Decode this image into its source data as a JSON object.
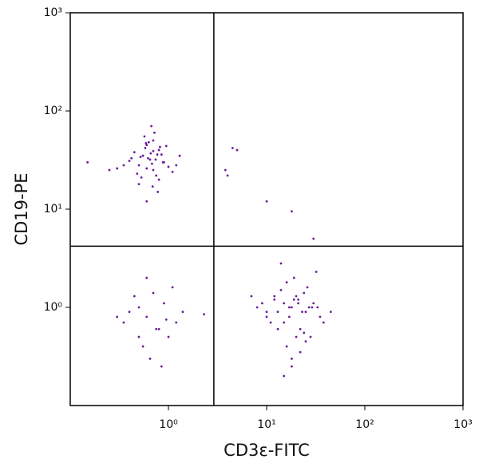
{
  "chart_data": {
    "type": "scatter",
    "xlabel": "CD3ε-FITC",
    "ylabel": "CD19-PE",
    "xscale": "log",
    "yscale": "log",
    "xlim": [
      0.1,
      1000
    ],
    "ylim": [
      0.1,
      1000
    ],
    "xticks": [
      {
        "value": 1,
        "label": "10⁰"
      },
      {
        "value": 10,
        "label": "10¹"
      },
      {
        "value": 100,
        "label": "10²"
      },
      {
        "value": 1000,
        "label": "10³"
      }
    ],
    "yticks": [
      {
        "value": 1,
        "label": "10⁰"
      },
      {
        "value": 10,
        "label": "10¹"
      },
      {
        "value": 100,
        "label": "10²"
      },
      {
        "value": 1000,
        "label": "10³"
      }
    ],
    "gates": {
      "x": 2.9,
      "y": 4.2
    },
    "color": "#6a1b9a",
    "x": [
      0.65,
      0.5,
      0.8,
      0.7,
      0.55,
      0.9,
      0.6,
      0.75,
      0.45,
      1.0,
      0.62,
      0.7,
      0.85,
      0.5,
      0.58,
      0.68,
      0.4,
      1.1,
      0.72,
      0.6,
      0.52,
      0.8,
      0.66,
      0.95,
      0.35,
      0.78,
      0.63,
      0.48,
      0.88,
      0.7,
      0.57,
      1.3,
      0.3,
      0.6,
      0.74,
      0.82,
      0.53,
      0.67,
      0.42,
      1.2,
      0.25,
      0.69,
      0.59,
      0.77,
      0.15,
      18,
      12,
      25,
      15,
      20,
      10,
      30,
      14,
      22,
      17,
      9,
      28,
      19,
      13,
      24,
      35,
      16,
      21,
      11,
      26,
      18,
      8,
      32,
      15,
      23,
      20,
      12,
      27,
      17,
      14,
      38,
      19,
      22,
      10,
      25,
      16,
      29,
      13,
      21,
      18,
      7,
      33,
      24,
      15,
      45,
      0.6,
      0.8,
      0.5,
      1.0,
      0.4,
      0.7,
      1.2,
      0.55,
      0.9,
      0.3,
      0.65,
      1.4,
      0.75,
      0.45,
      0.85,
      0.35,
      1.1,
      0.6,
      0.5,
      0.95,
      4.5,
      5,
      3.8,
      10,
      18,
      4,
      30,
      2.3
    ],
    "values": [
      32,
      28,
      40,
      25,
      35,
      30,
      45,
      22,
      38,
      27,
      33,
      50,
      36,
      18,
      42,
      29,
      31,
      24,
      60,
      26,
      34,
      20,
      37,
      44,
      28,
      15,
      48,
      23,
      30,
      39,
      55,
      35,
      26,
      12,
      32,
      43,
      21,
      70,
      33,
      28,
      25,
      17,
      47,
      36,
      30,
      1.0,
      1.2,
      0.9,
      0.7,
      1.3,
      0.8,
      1.1,
      1.5,
      0.6,
      1.0,
      1.1,
      0.5,
      2.0,
      0.9,
      1.4,
      0.8,
      0.4,
      1.2,
      0.7,
      1.6,
      0.3,
      1.0,
      2.3,
      1.1,
      0.9,
      0.5,
      1.3,
      1.0,
      0.8,
      2.8,
      0.7,
      1.2,
      0.35,
      0.9,
      0.45,
      1.8,
      1.0,
      0.6,
      1.1,
      0.25,
      1.3,
      1.0,
      0.55,
      0.2,
      0.9,
      0.8,
      0.6,
      1.0,
      0.5,
      0.9,
      1.4,
      0.7,
      0.4,
      1.1,
      0.8,
      0.3,
      0.9,
      0.6,
      1.3,
      0.25,
      0.7,
      1.6,
      2.0,
      0.5,
      0.75,
      42,
      40,
      25,
      12,
      9.5,
      22,
      5,
      0.85
    ]
  }
}
